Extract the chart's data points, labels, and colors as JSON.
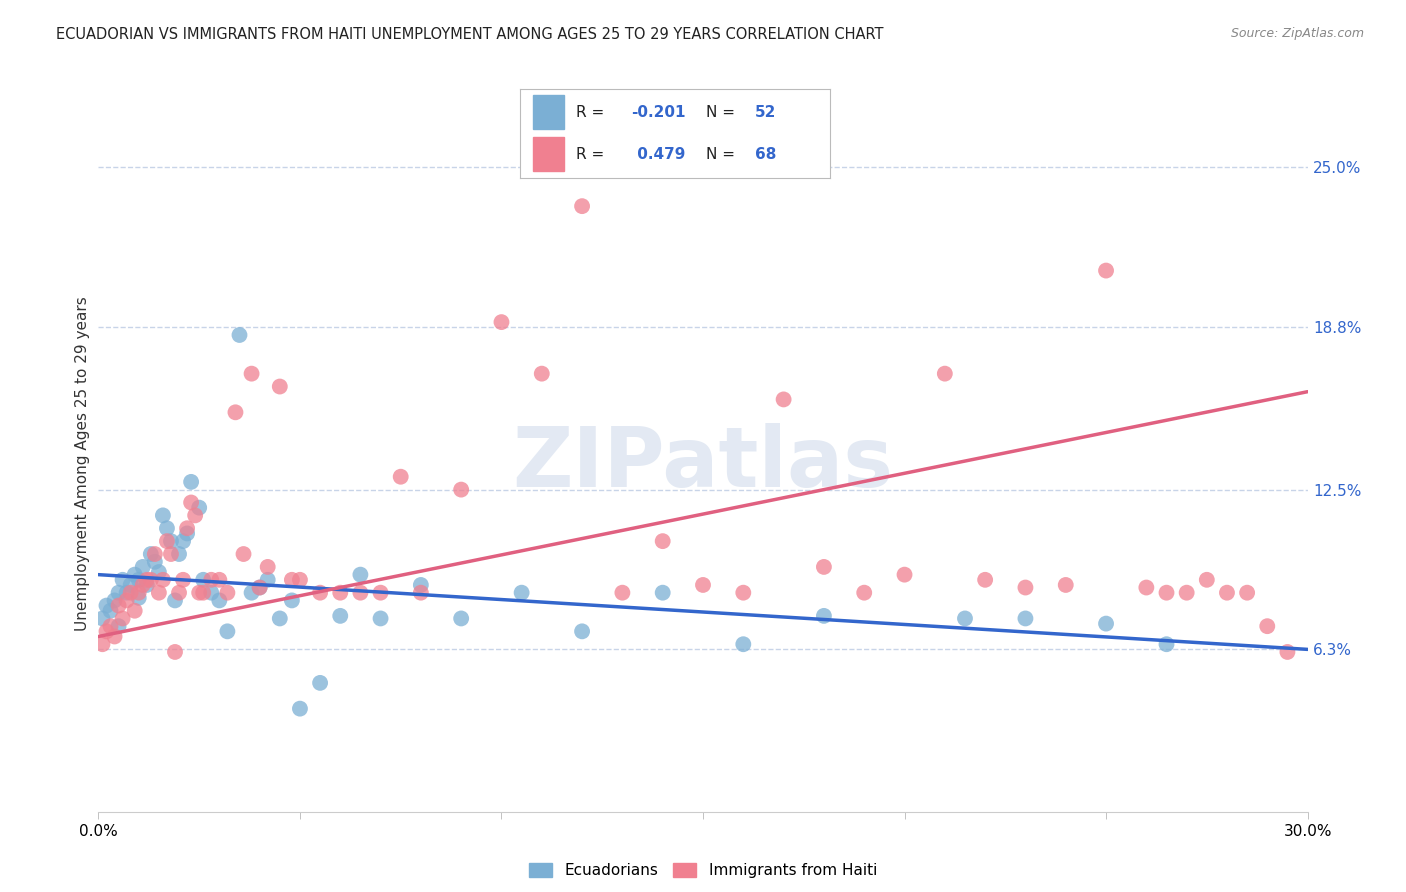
{
  "title": "ECUADORIAN VS IMMIGRANTS FROM HAITI UNEMPLOYMENT AMONG AGES 25 TO 29 YEARS CORRELATION CHART",
  "source": "Source: ZipAtlas.com",
  "ylabel": "Unemployment Among Ages 25 to 29 years",
  "xlim": [
    0.0,
    0.3
  ],
  "ylim": [
    0.0,
    0.27
  ],
  "ytick_labels_right": [
    "25.0%",
    "18.8%",
    "12.5%",
    "6.3%"
  ],
  "ytick_vals_right": [
    0.25,
    0.188,
    0.125,
    0.063
  ],
  "ecuadorian_color": "#7bafd4",
  "haiti_color": "#f08090",
  "ecuadorian_line_color": "#3366cc",
  "haiti_line_color": "#e06080",
  "background_color": "#ffffff",
  "grid_color": "#c8d4e8",
  "watermark": "ZIPatlas",
  "ecu_line_start_y": 0.092,
  "ecu_line_end_y": 0.063,
  "haiti_line_start_y": 0.068,
  "haiti_line_end_y": 0.163,
  "ecu_x": [
    0.001,
    0.002,
    0.003,
    0.004,
    0.005,
    0.005,
    0.006,
    0.007,
    0.008,
    0.009,
    0.01,
    0.01,
    0.011,
    0.012,
    0.013,
    0.014,
    0.015,
    0.016,
    0.017,
    0.018,
    0.019,
    0.02,
    0.021,
    0.022,
    0.023,
    0.025,
    0.026,
    0.028,
    0.03,
    0.032,
    0.035,
    0.038,
    0.04,
    0.042,
    0.045,
    0.048,
    0.05,
    0.055,
    0.06,
    0.065,
    0.07,
    0.08,
    0.09,
    0.105,
    0.12,
    0.14,
    0.16,
    0.18,
    0.215,
    0.23,
    0.25,
    0.265
  ],
  "ecu_y": [
    0.075,
    0.08,
    0.078,
    0.082,
    0.085,
    0.072,
    0.09,
    0.085,
    0.088,
    0.092,
    0.09,
    0.083,
    0.095,
    0.088,
    0.1,
    0.097,
    0.093,
    0.115,
    0.11,
    0.105,
    0.082,
    0.1,
    0.105,
    0.108,
    0.128,
    0.118,
    0.09,
    0.085,
    0.082,
    0.07,
    0.185,
    0.085,
    0.087,
    0.09,
    0.075,
    0.082,
    0.04,
    0.05,
    0.076,
    0.092,
    0.075,
    0.088,
    0.075,
    0.085,
    0.07,
    0.085,
    0.065,
    0.076,
    0.075,
    0.075,
    0.073,
    0.065
  ],
  "haiti_x": [
    0.001,
    0.002,
    0.003,
    0.004,
    0.005,
    0.006,
    0.007,
    0.008,
    0.009,
    0.01,
    0.011,
    0.012,
    0.013,
    0.014,
    0.015,
    0.016,
    0.017,
    0.018,
    0.019,
    0.02,
    0.021,
    0.022,
    0.023,
    0.024,
    0.025,
    0.026,
    0.028,
    0.03,
    0.032,
    0.034,
    0.036,
    0.038,
    0.04,
    0.042,
    0.045,
    0.048,
    0.05,
    0.055,
    0.06,
    0.065,
    0.07,
    0.075,
    0.08,
    0.09,
    0.1,
    0.11,
    0.12,
    0.13,
    0.14,
    0.15,
    0.16,
    0.17,
    0.18,
    0.19,
    0.2,
    0.21,
    0.22,
    0.23,
    0.24,
    0.25,
    0.26,
    0.265,
    0.27,
    0.275,
    0.28,
    0.285,
    0.29,
    0.295
  ],
  "haiti_y": [
    0.065,
    0.07,
    0.072,
    0.068,
    0.08,
    0.075,
    0.082,
    0.085,
    0.078,
    0.085,
    0.088,
    0.09,
    0.09,
    0.1,
    0.085,
    0.09,
    0.105,
    0.1,
    0.062,
    0.085,
    0.09,
    0.11,
    0.12,
    0.115,
    0.085,
    0.085,
    0.09,
    0.09,
    0.085,
    0.155,
    0.1,
    0.17,
    0.087,
    0.095,
    0.165,
    0.09,
    0.09,
    0.085,
    0.085,
    0.085,
    0.085,
    0.13,
    0.085,
    0.125,
    0.19,
    0.17,
    0.235,
    0.085,
    0.105,
    0.088,
    0.085,
    0.16,
    0.095,
    0.085,
    0.092,
    0.17,
    0.09,
    0.087,
    0.088,
    0.21,
    0.087,
    0.085,
    0.085,
    0.09,
    0.085,
    0.085,
    0.072,
    0.062
  ]
}
